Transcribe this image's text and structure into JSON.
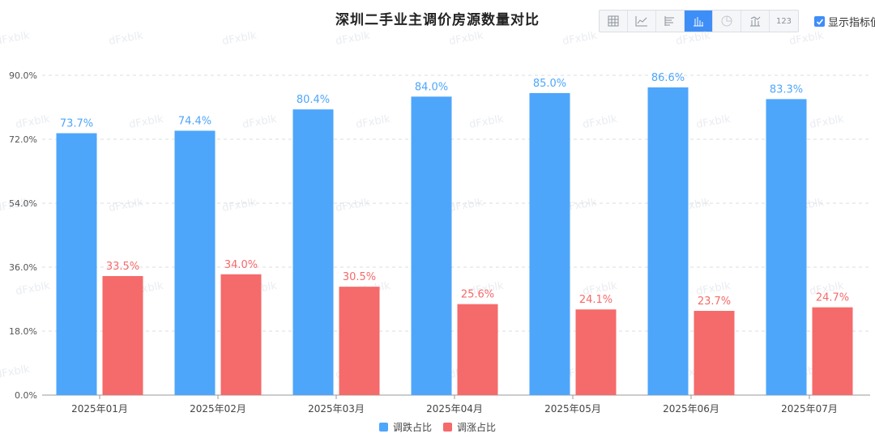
{
  "title": "深圳二手业主调价房源数量对比",
  "toolbar": {
    "items": [
      {
        "icon": "table-icon"
      },
      {
        "icon": "line-chart-icon"
      },
      {
        "icon": "bar-horizontal-icon"
      },
      {
        "icon": "bar-vertical-icon",
        "active": true
      },
      {
        "icon": "pie-chart-icon"
      },
      {
        "icon": "bar-line-icon"
      },
      {
        "icon": "number-icon",
        "label": "123"
      }
    ]
  },
  "indicator_toggle": {
    "label": "显示指标值",
    "checked": true
  },
  "watermark": "dFxblk",
  "colors": {
    "series1": "#4ea6fb",
    "series2": "#f56a6a",
    "accent": "#3e8ef7"
  },
  "chart_data": {
    "type": "bar",
    "categories": [
      "2025年01月",
      "2025年02月",
      "2025年03月",
      "2025年04月",
      "2025年05月",
      "2025年06月",
      "2025年07月"
    ],
    "series": [
      {
        "name": "调跌占比",
        "values": [
          73.7,
          74.4,
          80.4,
          84.0,
          85.0,
          86.6,
          83.3
        ]
      },
      {
        "name": "调涨占比",
        "values": [
          33.5,
          34.0,
          30.5,
          25.6,
          24.1,
          23.7,
          24.7
        ]
      }
    ],
    "ylim": [
      0,
      90
    ],
    "yticks": [
      "0.0%",
      "18.0%",
      "36.0%",
      "54.0%",
      "72.0%",
      "90.0%"
    ],
    "value_suffix": "%",
    "grid": true,
    "legend_position": "bottom"
  }
}
